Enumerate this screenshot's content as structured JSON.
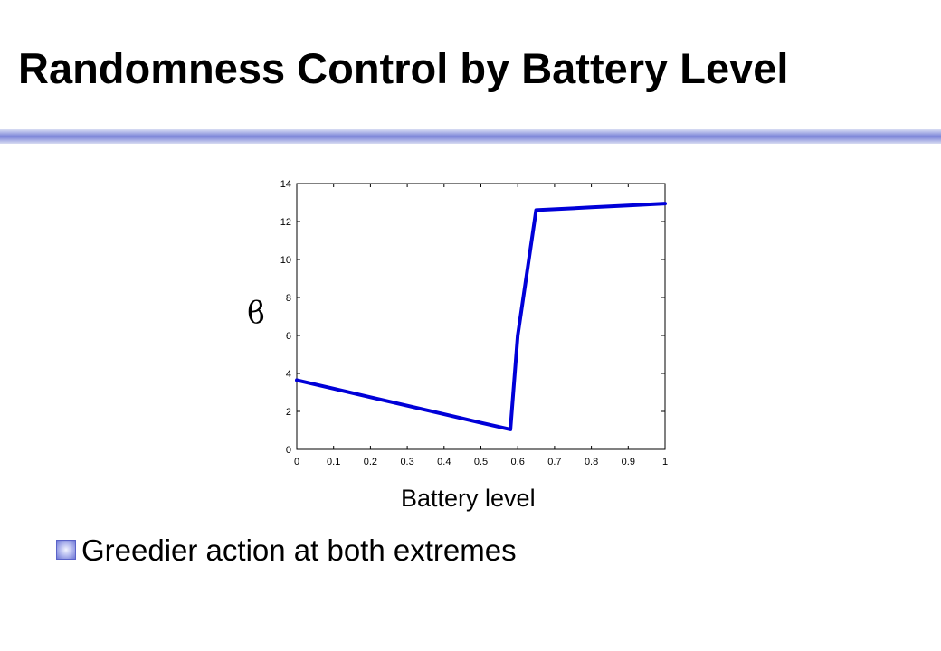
{
  "slide": {
    "title": "Randomness Control by Battery Level",
    "bullet": "Greedier action at both extremes"
  },
  "chart_data": {
    "type": "line",
    "title": "",
    "xlabel": "Battery level",
    "ylabel": "ϐ",
    "xlim": [
      0,
      1
    ],
    "ylim": [
      0,
      14
    ],
    "xticks": [
      "0",
      "0.1",
      "0.2",
      "0.3",
      "0.4",
      "0.5",
      "0.6",
      "0.7",
      "0.8",
      "0.9",
      "1"
    ],
    "yticks": [
      "0",
      "2",
      "4",
      "6",
      "8",
      "10",
      "12",
      "14"
    ],
    "grid": false,
    "legend": "none",
    "series": [
      {
        "color": "#0000d8",
        "x": [
          0,
          0.1,
          0.2,
          0.3,
          0.4,
          0.5,
          0.58,
          0.6,
          0.65,
          0.7,
          0.8,
          0.9,
          1.0
        ],
        "y": [
          3.65,
          3.2,
          2.75,
          2.3,
          1.85,
          1.4,
          1.05,
          6.0,
          12.6,
          12.65,
          12.75,
          12.85,
          12.95
        ]
      }
    ]
  },
  "colors": {
    "rule": "#7b84d8",
    "bullet": "#6f78d6"
  }
}
